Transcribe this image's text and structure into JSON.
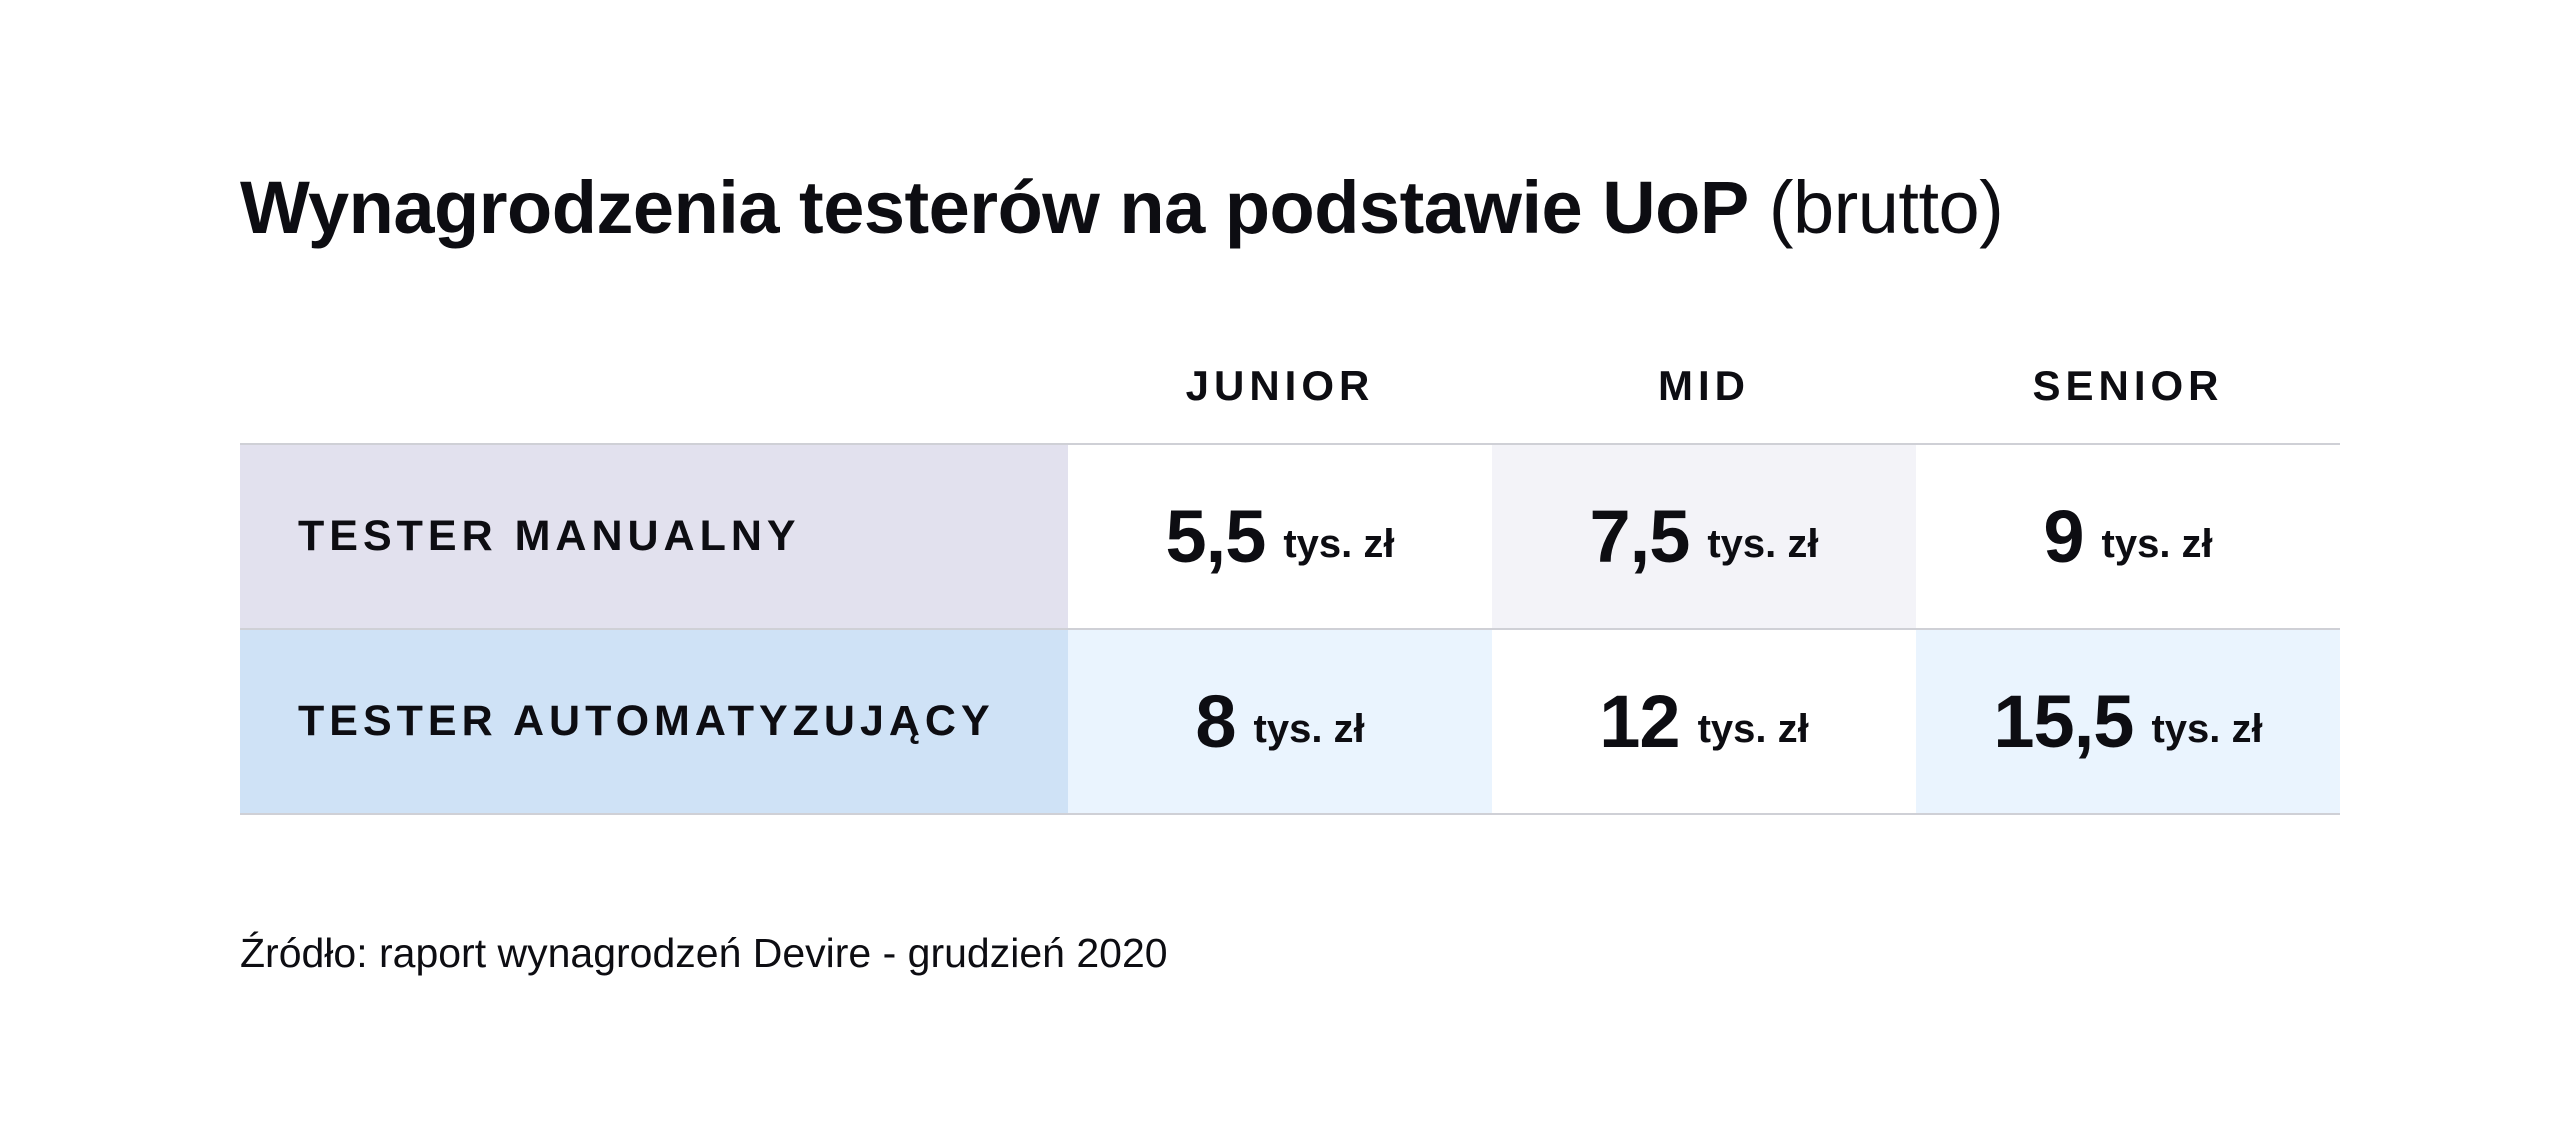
{
  "title": {
    "main": "Wynagrodzenia testerów na podstawie UoP",
    "sub": "(brutto)"
  },
  "colors": {
    "manual_label_bg": "#e2e1ee",
    "manual_cell_alt_bg": "#f3f3f8",
    "auto_label_bg": "#cfe2f6",
    "auto_cell_alt_bg": "#eaf4fe",
    "white": "#ffffff",
    "border": "#cfd0d6"
  },
  "chart_data": {
    "type": "table",
    "unit": "tys. zł",
    "columns": [
      "JUNIOR",
      "MID",
      "SENIOR"
    ],
    "rows": [
      {
        "label": "TESTER MANUALNY",
        "values": [
          "5,5",
          "7,5",
          "9"
        ],
        "numeric": [
          5.5,
          7.5,
          9
        ]
      },
      {
        "label": "TESTER AUTOMATYZUJĄCY",
        "values": [
          "8",
          "12",
          "15,5"
        ],
        "numeric": [
          8,
          12,
          15.5
        ]
      }
    ]
  },
  "source": "Źródło: raport wynagrodzeń Devire - grudzień 2020"
}
